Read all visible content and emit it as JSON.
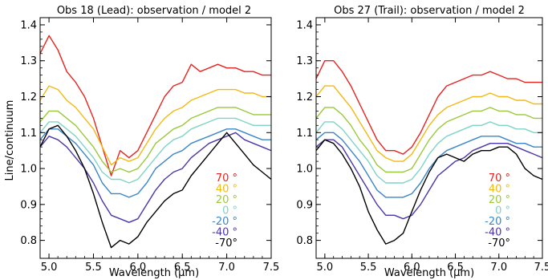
{
  "chart_data": [
    {
      "type": "line",
      "title": "Obs 18 (Lead): observation / model 2",
      "xlabel": "Wavelength (µm)",
      "ylabel": "Line/continuum",
      "xlim": [
        4.9,
        7.5
      ],
      "ylim": [
        0.75,
        1.42
      ],
      "xticks": [
        "5.0",
        "5.5",
        "6.0",
        "6.5",
        "7.0",
        "7.5"
      ],
      "yticks": [
        "0.8",
        "0.9",
        "1.0",
        "1.1",
        "1.2",
        "1.3",
        "1.4"
      ],
      "grid": false,
      "legend_position": "bottom-right",
      "series": [
        {
          "name": "70 °",
          "color": "#e8231f",
          "x": [
            4.9,
            5.0,
            5.1,
            5.2,
            5.3,
            5.4,
            5.5,
            5.6,
            5.7,
            5.8,
            5.9,
            6.0,
            6.1,
            6.2,
            6.3,
            6.4,
            6.5,
            6.6,
            6.7,
            6.8,
            6.9,
            7.0,
            7.1,
            7.2,
            7.3,
            7.4,
            7.5
          ],
          "y": [
            1.32,
            1.37,
            1.33,
            1.27,
            1.24,
            1.2,
            1.14,
            1.06,
            0.98,
            1.05,
            1.03,
            1.05,
            1.1,
            1.15,
            1.2,
            1.23,
            1.24,
            1.29,
            1.27,
            1.28,
            1.29,
            1.28,
            1.28,
            1.27,
            1.27,
            1.26,
            1.26
          ]
        },
        {
          "name": "40 °",
          "color": "#f2b915",
          "x": [
            4.9,
            5.0,
            5.1,
            5.2,
            5.3,
            5.4,
            5.5,
            5.6,
            5.7,
            5.8,
            5.9,
            6.0,
            6.1,
            6.2,
            6.3,
            6.4,
            6.5,
            6.6,
            6.7,
            6.8,
            6.9,
            7.0,
            7.1,
            7.2,
            7.3,
            7.4,
            7.5
          ],
          "y": [
            1.19,
            1.23,
            1.22,
            1.19,
            1.17,
            1.14,
            1.11,
            1.06,
            1.01,
            1.03,
            1.02,
            1.03,
            1.07,
            1.11,
            1.14,
            1.16,
            1.17,
            1.19,
            1.2,
            1.21,
            1.22,
            1.22,
            1.22,
            1.21,
            1.21,
            1.2,
            1.2
          ]
        },
        {
          "name": "20 °",
          "color": "#9ac83a",
          "x": [
            4.9,
            5.0,
            5.1,
            5.2,
            5.3,
            5.4,
            5.5,
            5.6,
            5.7,
            5.8,
            5.9,
            6.0,
            6.1,
            6.2,
            6.3,
            6.4,
            6.5,
            6.6,
            6.7,
            6.8,
            6.9,
            7.0,
            7.1,
            7.2,
            7.3,
            7.4,
            7.5
          ],
          "y": [
            1.13,
            1.16,
            1.16,
            1.14,
            1.12,
            1.09,
            1.06,
            1.02,
            0.99,
            1.0,
            0.99,
            1.0,
            1.03,
            1.07,
            1.09,
            1.11,
            1.12,
            1.14,
            1.15,
            1.16,
            1.17,
            1.17,
            1.17,
            1.16,
            1.15,
            1.15,
            1.15
          ]
        },
        {
          "name": "0 °",
          "color": "#7fd3c7",
          "x": [
            4.9,
            5.0,
            5.1,
            5.2,
            5.3,
            5.4,
            5.5,
            5.6,
            5.7,
            5.8,
            5.9,
            6.0,
            6.1,
            6.2,
            6.3,
            6.4,
            6.5,
            6.6,
            6.7,
            6.8,
            6.9,
            7.0,
            7.1,
            7.2,
            7.3,
            7.4,
            7.5
          ],
          "y": [
            1.1,
            1.13,
            1.13,
            1.11,
            1.09,
            1.06,
            1.03,
            0.99,
            0.97,
            0.97,
            0.96,
            0.97,
            1.0,
            1.03,
            1.06,
            1.08,
            1.09,
            1.11,
            1.12,
            1.13,
            1.14,
            1.14,
            1.14,
            1.13,
            1.12,
            1.12,
            1.12
          ]
        },
        {
          "name": "-20 °",
          "color": "#3a86c8",
          "x": [
            4.9,
            5.0,
            5.1,
            5.2,
            5.3,
            5.4,
            5.5,
            5.6,
            5.7,
            5.8,
            5.9,
            6.0,
            6.1,
            6.2,
            6.3,
            6.4,
            6.5,
            6.6,
            6.7,
            6.8,
            6.9,
            7.0,
            7.1,
            7.2,
            7.3,
            7.4,
            7.5
          ],
          "y": [
            1.08,
            1.11,
            1.11,
            1.09,
            1.07,
            1.04,
            1.01,
            0.96,
            0.93,
            0.93,
            0.92,
            0.93,
            0.96,
            1.0,
            1.02,
            1.04,
            1.05,
            1.07,
            1.08,
            1.09,
            1.1,
            1.11,
            1.11,
            1.1,
            1.09,
            1.08,
            1.08
          ]
        },
        {
          "name": "-40 °",
          "color": "#4c35a8",
          "x": [
            4.9,
            5.0,
            5.1,
            5.2,
            5.3,
            5.4,
            5.5,
            5.6,
            5.7,
            5.8,
            5.9,
            6.0,
            6.1,
            6.2,
            6.3,
            6.4,
            6.5,
            6.6,
            6.7,
            6.8,
            6.9,
            7.0,
            7.1,
            7.2,
            7.3,
            7.4,
            7.5
          ],
          "y": [
            1.06,
            1.09,
            1.08,
            1.06,
            1.03,
            1.0,
            0.96,
            0.91,
            0.87,
            0.86,
            0.85,
            0.86,
            0.9,
            0.94,
            0.97,
            0.99,
            1.0,
            1.03,
            1.05,
            1.07,
            1.08,
            1.09,
            1.1,
            1.08,
            1.07,
            1.06,
            1.05
          ]
        },
        {
          "name": "-70°",
          "color": "#000000",
          "x": [
            4.9,
            5.0,
            5.1,
            5.2,
            5.3,
            5.4,
            5.5,
            5.6,
            5.7,
            5.8,
            5.9,
            6.0,
            6.1,
            6.2,
            6.3,
            6.4,
            6.5,
            6.6,
            6.7,
            6.8,
            6.9,
            7.0,
            7.1,
            7.2,
            7.3,
            7.4,
            7.5
          ],
          "y": [
            1.06,
            1.11,
            1.12,
            1.09,
            1.05,
            1.0,
            0.93,
            0.85,
            0.78,
            0.8,
            0.79,
            0.81,
            0.85,
            0.88,
            0.91,
            0.93,
            0.94,
            0.98,
            1.01,
            1.04,
            1.07,
            1.1,
            1.07,
            1.04,
            1.01,
            0.99,
            0.97
          ]
        }
      ]
    },
    {
      "type": "line",
      "title": "Obs 27 (Trail): observation / model 2",
      "xlabel": "Wavelength (µm)",
      "ylabel": "",
      "xlim": [
        4.9,
        7.5
      ],
      "ylim": [
        0.75,
        1.42
      ],
      "xticks": [
        "5.0",
        "5.5",
        "6.0",
        "6.5",
        "7.0",
        "7.5"
      ],
      "yticks": [
        "0.8",
        "0.9",
        "1.0",
        "1.1",
        "1.2",
        "1.3",
        "1.4"
      ],
      "grid": false,
      "legend_position": "bottom-right",
      "series": [
        {
          "name": "70 °",
          "color": "#e8231f",
          "x": [
            4.9,
            5.0,
            5.1,
            5.2,
            5.3,
            5.4,
            5.5,
            5.6,
            5.7,
            5.8,
            5.9,
            6.0,
            6.1,
            6.2,
            6.3,
            6.4,
            6.5,
            6.6,
            6.7,
            6.8,
            6.9,
            7.0,
            7.1,
            7.2,
            7.3,
            7.4,
            7.5
          ],
          "y": [
            1.25,
            1.3,
            1.3,
            1.27,
            1.23,
            1.18,
            1.13,
            1.08,
            1.05,
            1.05,
            1.04,
            1.06,
            1.1,
            1.15,
            1.2,
            1.23,
            1.24,
            1.25,
            1.26,
            1.26,
            1.27,
            1.26,
            1.25,
            1.25,
            1.24,
            1.24,
            1.24
          ]
        },
        {
          "name": "40 °",
          "color": "#f2b915",
          "x": [
            4.9,
            5.0,
            5.1,
            5.2,
            5.3,
            5.4,
            5.5,
            5.6,
            5.7,
            5.8,
            5.9,
            6.0,
            6.1,
            6.2,
            6.3,
            6.4,
            6.5,
            6.6,
            6.7,
            6.8,
            6.9,
            7.0,
            7.1,
            7.2,
            7.3,
            7.4,
            7.5
          ],
          "y": [
            1.2,
            1.23,
            1.23,
            1.2,
            1.17,
            1.13,
            1.09,
            1.05,
            1.03,
            1.02,
            1.02,
            1.04,
            1.08,
            1.12,
            1.15,
            1.17,
            1.18,
            1.19,
            1.2,
            1.2,
            1.21,
            1.2,
            1.2,
            1.19,
            1.19,
            1.18,
            1.18
          ]
        },
        {
          "name": "20 °",
          "color": "#9ac83a",
          "x": [
            4.9,
            5.0,
            5.1,
            5.2,
            5.3,
            5.4,
            5.5,
            5.6,
            5.7,
            5.8,
            5.9,
            6.0,
            6.1,
            6.2,
            6.3,
            6.4,
            6.5,
            6.6,
            6.7,
            6.8,
            6.9,
            7.0,
            7.1,
            7.2,
            7.3,
            7.4,
            7.5
          ],
          "y": [
            1.14,
            1.17,
            1.17,
            1.15,
            1.12,
            1.08,
            1.05,
            1.01,
            0.99,
            0.99,
            0.99,
            1.0,
            1.04,
            1.08,
            1.11,
            1.13,
            1.14,
            1.15,
            1.16,
            1.16,
            1.17,
            1.16,
            1.16,
            1.15,
            1.15,
            1.14,
            1.14
          ]
        },
        {
          "name": "0 °",
          "color": "#7fd3c7",
          "x": [
            4.9,
            5.0,
            5.1,
            5.2,
            5.3,
            5.4,
            5.5,
            5.6,
            5.7,
            5.8,
            5.9,
            6.0,
            6.1,
            6.2,
            6.3,
            6.4,
            6.5,
            6.6,
            6.7,
            6.8,
            6.9,
            7.0,
            7.1,
            7.2,
            7.3,
            7.4,
            7.5
          ],
          "y": [
            1.1,
            1.13,
            1.13,
            1.11,
            1.08,
            1.05,
            1.02,
            0.98,
            0.96,
            0.96,
            0.96,
            0.97,
            1.0,
            1.04,
            1.07,
            1.09,
            1.1,
            1.11,
            1.12,
            1.12,
            1.13,
            1.12,
            1.12,
            1.11,
            1.11,
            1.1,
            1.1
          ]
        },
        {
          "name": "-20 °",
          "color": "#3a86c8",
          "x": [
            4.9,
            5.0,
            5.1,
            5.2,
            5.3,
            5.4,
            5.5,
            5.6,
            5.7,
            5.8,
            5.9,
            6.0,
            6.1,
            6.2,
            6.3,
            6.4,
            6.5,
            6.6,
            6.7,
            6.8,
            6.9,
            7.0,
            7.1,
            7.2,
            7.3,
            7.4,
            7.5
          ],
          "y": [
            1.08,
            1.1,
            1.1,
            1.08,
            1.05,
            1.02,
            0.98,
            0.94,
            0.92,
            0.92,
            0.92,
            0.93,
            0.96,
            1.0,
            1.03,
            1.05,
            1.06,
            1.07,
            1.08,
            1.09,
            1.09,
            1.09,
            1.08,
            1.07,
            1.07,
            1.06,
            1.06
          ]
        },
        {
          "name": "-40 °",
          "color": "#4c35a8",
          "x": [
            4.9,
            5.0,
            5.1,
            5.2,
            5.3,
            5.4,
            5.5,
            5.6,
            5.7,
            5.8,
            5.9,
            6.0,
            6.1,
            6.2,
            6.3,
            6.4,
            6.5,
            6.6,
            6.7,
            6.8,
            6.9,
            7.0,
            7.1,
            7.2,
            7.3,
            7.4,
            7.5
          ],
          "y": [
            1.06,
            1.08,
            1.08,
            1.06,
            1.02,
            0.98,
            0.94,
            0.9,
            0.87,
            0.87,
            0.86,
            0.87,
            0.9,
            0.94,
            0.98,
            1.0,
            1.02,
            1.03,
            1.05,
            1.06,
            1.07,
            1.07,
            1.07,
            1.06,
            1.05,
            1.04,
            1.03
          ]
        },
        {
          "name": "-70°",
          "color": "#000000",
          "x": [
            4.9,
            5.0,
            5.1,
            5.2,
            5.3,
            5.4,
            5.5,
            5.6,
            5.7,
            5.8,
            5.9,
            6.0,
            6.1,
            6.2,
            6.3,
            6.4,
            6.5,
            6.6,
            6.7,
            6.8,
            6.9,
            7.0,
            7.1,
            7.2,
            7.3,
            7.4,
            7.5
          ],
          "y": [
            1.05,
            1.08,
            1.07,
            1.04,
            1.0,
            0.95,
            0.88,
            0.83,
            0.79,
            0.8,
            0.82,
            0.88,
            0.94,
            0.99,
            1.03,
            1.04,
            1.03,
            1.02,
            1.04,
            1.05,
            1.05,
            1.06,
            1.06,
            1.04,
            1.0,
            0.98,
            0.97
          ]
        }
      ]
    }
  ]
}
